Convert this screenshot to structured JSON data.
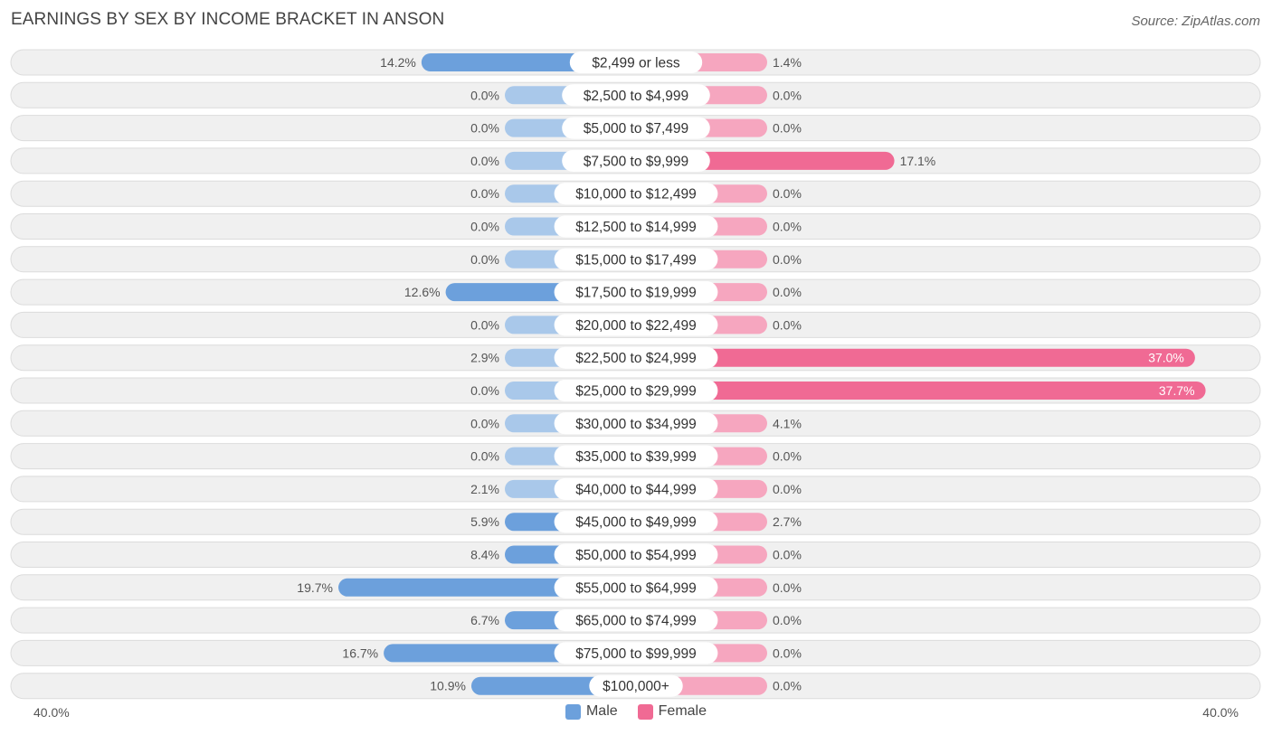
{
  "header": {
    "title": "EARNINGS BY SEX BY INCOME BRACKET IN ANSON",
    "source": "Source: ZipAtlas.com"
  },
  "axis": {
    "left_label": "40.0%",
    "right_label": "40.0%"
  },
  "legend": {
    "male_label": "Male",
    "female_label": "Female"
  },
  "colors": {
    "male_strong": "#6ca0dc",
    "male_light": "#a9c8ea",
    "female_strong": "#f06a94",
    "female_light": "#f6a6bf",
    "row_bg": "#f0f0f0",
    "row_border": "#dcdcdc"
  },
  "chart_data": {
    "type": "bar",
    "orientation": "horizontal-diverging",
    "title": "EARNINGS BY SEX BY INCOME BRACKET IN ANSON",
    "xlim": [
      -40,
      40
    ],
    "categories": [
      "$2,499 or less",
      "$2,500 to $4,999",
      "$5,000 to $7,499",
      "$7,500 to $9,999",
      "$10,000 to $12,499",
      "$12,500 to $14,999",
      "$15,000 to $17,499",
      "$17,500 to $19,999",
      "$20,000 to $22,499",
      "$22,500 to $24,999",
      "$25,000 to $29,999",
      "$30,000 to $34,999",
      "$35,000 to $39,999",
      "$40,000 to $44,999",
      "$45,000 to $49,999",
      "$50,000 to $54,999",
      "$55,000 to $64,999",
      "$65,000 to $74,999",
      "$75,000 to $99,999",
      "$100,000+"
    ],
    "series": [
      {
        "name": "Male",
        "values": [
          14.2,
          0.0,
          0.0,
          0.0,
          0.0,
          0.0,
          0.0,
          12.6,
          0.0,
          2.9,
          0.0,
          0.0,
          0.0,
          2.1,
          5.9,
          8.4,
          19.7,
          6.7,
          16.7,
          10.9
        ],
        "labels": [
          "14.2%",
          "0.0%",
          "0.0%",
          "0.0%",
          "0.0%",
          "0.0%",
          "0.0%",
          "12.6%",
          "0.0%",
          "2.9%",
          "0.0%",
          "0.0%",
          "0.0%",
          "2.1%",
          "5.9%",
          "8.4%",
          "19.7%",
          "6.7%",
          "16.7%",
          "10.9%"
        ]
      },
      {
        "name": "Female",
        "values": [
          1.4,
          0.0,
          0.0,
          17.1,
          0.0,
          0.0,
          0.0,
          0.0,
          0.0,
          37.0,
          37.7,
          4.1,
          0.0,
          0.0,
          2.7,
          0.0,
          0.0,
          0.0,
          0.0,
          0.0
        ],
        "labels": [
          "1.4%",
          "0.0%",
          "0.0%",
          "17.1%",
          "0.0%",
          "0.0%",
          "0.0%",
          "0.0%",
          "0.0%",
          "37.0%",
          "37.7%",
          "4.1%",
          "0.0%",
          "0.0%",
          "2.7%",
          "0.0%",
          "0.0%",
          "0.0%",
          "0.0%",
          "0.0%"
        ]
      }
    ]
  }
}
